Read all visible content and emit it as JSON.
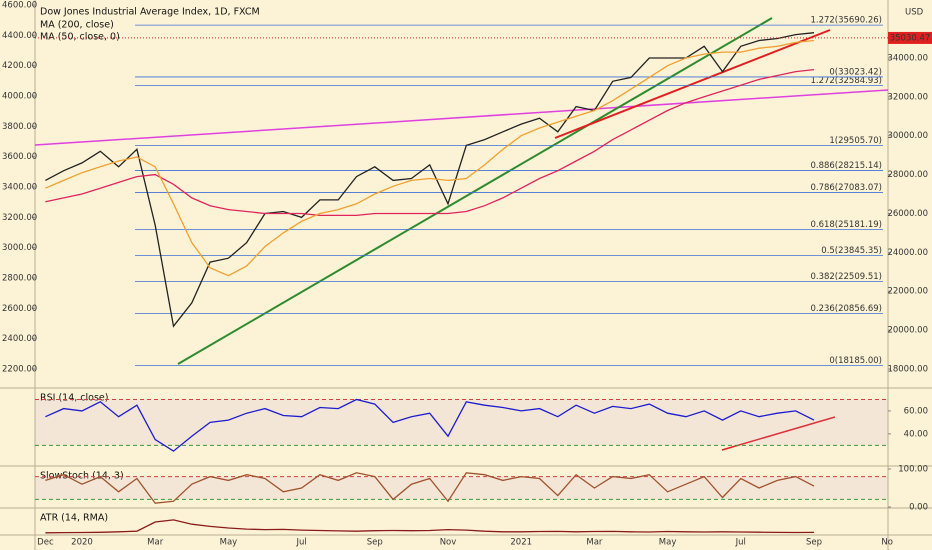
{
  "chart_data": [
    {
      "type": "line",
      "title": "Dow Jones Industrial Average Index, 1D, FXCM",
      "currency": "USD",
      "last_price": 35030.47,
      "categories": [
        "Dec",
        null,
        "2020",
        null,
        null,
        null,
        "Mar",
        null,
        null,
        null,
        "May",
        null,
        null,
        null,
        "Jul",
        null,
        null,
        null,
        "Sep",
        null,
        null,
        null,
        "Nov",
        null,
        null,
        null,
        "2021",
        null,
        null,
        null,
        "Mar",
        null,
        null,
        null,
        "May",
        null,
        null,
        null,
        "Jul",
        null,
        null,
        null,
        "Sep",
        null,
        null,
        null,
        "No"
      ],
      "ylim": [
        2075,
        4633
      ],
      "yticks": [
        {
          "value": 2200,
          "label": "2200.00"
        },
        {
          "value": 2400,
          "label": "2400.00"
        },
        {
          "value": 2600,
          "label": "2600.00"
        },
        {
          "value": 2800,
          "label": "2800.00"
        },
        {
          "value": 3000,
          "label": "3000.00"
        },
        {
          "value": 3200,
          "label": "3200.00"
        },
        {
          "value": 3400,
          "label": "3400.00"
        },
        {
          "value": 3600,
          "label": "3600.00"
        },
        {
          "value": 3800,
          "label": "3800.00"
        },
        {
          "value": 4000,
          "label": "4000.00"
        },
        {
          "value": 4200,
          "label": "4200.00"
        },
        {
          "value": 4400,
          "label": "4400.00"
        },
        {
          "value": 4600,
          "label": "4600.00"
        }
      ],
      "y2lim": [
        17023,
        36982
      ],
      "y2ticks": [
        {
          "value": 18000,
          "label": "18000.00"
        },
        {
          "value": 20000,
          "label": "20000.00"
        },
        {
          "value": 22000,
          "label": "22000.00"
        },
        {
          "value": 24000,
          "label": "24000.00"
        },
        {
          "value": 26000,
          "label": "26000.00"
        },
        {
          "value": 28000,
          "label": "28000.00"
        },
        {
          "value": 30000,
          "label": "30000.00"
        },
        {
          "value": 32000,
          "label": "32000.00"
        },
        {
          "value": 34000,
          "label": "34000.00"
        }
      ],
      "fib_color": "#3d6fd8",
      "fib_levels": [
        {
          "value": 18185.0,
          "label": "0(18185.00)"
        },
        {
          "value": 20856.69,
          "label": "0.236(20856.69)"
        },
        {
          "value": 22509.51,
          "label": "0.382(22509.51)"
        },
        {
          "value": 23845.35,
          "label": "0.5(23845.35)"
        },
        {
          "value": 25181.19,
          "label": "0.618(25181.19)"
        },
        {
          "value": 27083.07,
          "label": "0.786(27083.07)"
        },
        {
          "value": 28215.14,
          "label": "0.886(28215.14)"
        },
        {
          "value": 29505.7,
          "label": "1(29505.70)"
        },
        {
          "value": 32584.93,
          "label": "1.272(32584.93)"
        },
        {
          "value": 33023.42,
          "label": "0(33023.42)"
        },
        {
          "value": 35690.26,
          "label": "1.272(35690.26)"
        }
      ],
      "series": [
        {
          "color": "#222222",
          "axis": "y2",
          "values": [
            27700,
            28200,
            28600,
            29200,
            28400,
            29300,
            25400,
            20200,
            21400,
            23500,
            23700,
            24500,
            26000,
            26100,
            25800,
            26700,
            26700,
            27900,
            28400,
            27700,
            27800,
            28500,
            26500,
            29500,
            29800,
            30200,
            30600,
            30900,
            30200,
            31500,
            31300,
            32800,
            33000,
            34000,
            34000,
            34000,
            34600,
            33300,
            34600,
            34900,
            35000,
            35200,
            35300,
            null,
            null,
            null,
            null
          ]
        },
        {
          "name": "MA (200, close)",
          "color": "#e0245e",
          "axis": "y2",
          "values": [
            26600,
            26800,
            27000,
            27300,
            27600,
            27900,
            28000,
            27500,
            26800,
            26400,
            26200,
            26100,
            26000,
            26000,
            26000,
            25900,
            25900,
            25900,
            26000,
            26000,
            26000,
            26000,
            26000,
            26100,
            26400,
            26800,
            27300,
            27800,
            28200,
            28700,
            29200,
            29800,
            30300,
            30800,
            31300,
            31700,
            32000,
            32300,
            32600,
            32900,
            33100,
            33300,
            33400,
            null,
            null,
            null,
            null
          ]
        },
        {
          "name": "MA (50, close, 0)",
          "color": "#f0a030",
          "axis": "y2",
          "values": [
            27300,
            27700,
            28100,
            28400,
            28700,
            28900,
            28400,
            26500,
            24500,
            23200,
            22800,
            23300,
            24300,
            25000,
            25600,
            26000,
            26200,
            26500,
            27000,
            27400,
            27700,
            27800,
            27700,
            27800,
            28500,
            29300,
            30000,
            30400,
            30700,
            31000,
            31300,
            31800,
            32400,
            33000,
            33600,
            34000,
            34200,
            34300,
            34300,
            34500,
            34600,
            34800,
            34900,
            null,
            null,
            null,
            null
          ]
        }
      ]
    },
    {
      "type": "line",
      "title": "RSI (14, close)",
      "ylim": [
        12,
        80
      ],
      "yticks": [
        {
          "value": 40,
          "label": "40.00"
        },
        {
          "value": 60,
          "label": "60.00"
        }
      ],
      "levels": [
        70,
        30
      ],
      "series": [
        {
          "color": "#1c1cd0",
          "values": [
            55,
            62,
            60,
            68,
            55,
            65,
            35,
            25,
            38,
            50,
            52,
            58,
            62,
            56,
            55,
            63,
            62,
            70,
            66,
            50,
            55,
            58,
            38,
            68,
            65,
            63,
            60,
            62,
            55,
            65,
            58,
            64,
            62,
            66,
            58,
            55,
            60,
            52,
            60,
            55,
            58,
            60,
            52,
            null,
            null,
            null,
            null
          ]
        }
      ]
    },
    {
      "type": "line",
      "title": "SlowStoch (14, 3)",
      "ylim": [
        -2.6,
        107.9
      ],
      "yticks": [
        {
          "value": 0,
          "label": "0.00"
        },
        {
          "value": 100,
          "label": "100.00"
        }
      ],
      "levels": [
        80,
        20
      ],
      "series": [
        {
          "color": "#a0522d",
          "values": [
            70,
            85,
            60,
            80,
            40,
            75,
            10,
            15,
            60,
            80,
            70,
            85,
            75,
            40,
            50,
            85,
            70,
            90,
            80,
            20,
            60,
            75,
            15,
            90,
            85,
            70,
            80,
            75,
            30,
            85,
            50,
            80,
            75,
            85,
            40,
            60,
            80,
            25,
            75,
            50,
            70,
            80,
            55,
            null,
            null,
            null,
            null
          ]
        }
      ]
    },
    {
      "type": "line",
      "title": "ATR (14, RMA)",
      "ylim": [
        0,
        2500
      ],
      "series": [
        {
          "color": "#8b1a1a",
          "values": [
            200,
            220,
            230,
            250,
            300,
            350,
            1200,
            1400,
            1000,
            800,
            650,
            550,
            500,
            520,
            450,
            420,
            380,
            350,
            400,
            420,
            400,
            420,
            500,
            450,
            350,
            300,
            300,
            320,
            330,
            300,
            320,
            330,
            300,
            280,
            320,
            300,
            280,
            300,
            280,
            260,
            240,
            230,
            240,
            null,
            null,
            null,
            null
          ]
        }
      ]
    }
  ]
}
